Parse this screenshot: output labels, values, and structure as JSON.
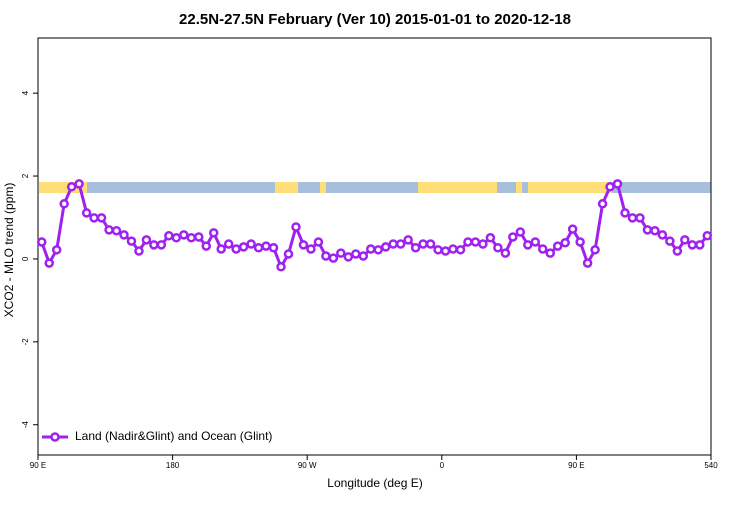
{
  "chart_data": {
    "type": "line",
    "title": "22.5N-27.5N February (Ver 10)   2015-01-01 to 2020-12-18",
    "x_label": "Longitude (deg E)",
    "y_label": "XCO2 - MLO trend (ppm)",
    "xlim": [
      90,
      540
    ],
    "ylim": [
      -4.73,
      5.33
    ],
    "xticks": [
      {
        "value": 90,
        "label": "90 E"
      },
      180,
      {
        "value": 270,
        "label": "90 W"
      },
      {
        "value": 360,
        "label": "0"
      },
      {
        "value": 450,
        "label": "90 E"
      },
      540
    ],
    "yticks": [
      -4,
      -2,
      0,
      2,
      4
    ],
    "legend": "bottom-left",
    "series": [
      {
        "name": "Land (Nadir&Glint) and Ocean (Glint)",
        "color": "#a020f0",
        "x": [
          92.5,
          97.5,
          102.5,
          107.5,
          112.5,
          117.5,
          122.5,
          127.5,
          132.5,
          137.5,
          142.5,
          147.5,
          152.5,
          157.5,
          162.5,
          167.5,
          172.5,
          177.5,
          182.5,
          187.5,
          192.5,
          197.5,
          202.5,
          207.5,
          212.5,
          217.5,
          222.5,
          227.5,
          232.5,
          237.5,
          242.5,
          247.5,
          252.5,
          257.5,
          262.5,
          267.5,
          272.5,
          277.5,
          282.5,
          287.5,
          292.5,
          297.5,
          302.5,
          307.5,
          312.5,
          317.5,
          322.5,
          327.5,
          332.5,
          337.5,
          342.5,
          347.5,
          352.5,
          357.5,
          362.5,
          367.5,
          372.5,
          377.5,
          382.5,
          387.5,
          392.5,
          397.5,
          402.5,
          407.5,
          412.5,
          417.5,
          422.5,
          427.5,
          432.5,
          437.5,
          442.5,
          447.5,
          452.5,
          457.5,
          462.5,
          467.5,
          472.5,
          477.5,
          482.5,
          487.5,
          492.5,
          497.5,
          502.5,
          507.5,
          512.5,
          517.5,
          522.5,
          527.5,
          532.5,
          537.5
        ],
        "values": [
          0.41,
          -0.1,
          0.22,
          1.33,
          1.74,
          1.81,
          1.11,
          0.99,
          0.99,
          0.7,
          0.68,
          0.58,
          0.43,
          0.19,
          0.46,
          0.34,
          0.34,
          0.56,
          0.51,
          0.58,
          0.51,
          0.53,
          0.31,
          0.63,
          0.24,
          0.36,
          0.24,
          0.29,
          0.36,
          0.27,
          0.31,
          0.27,
          -0.19,
          0.12,
          0.77,
          0.34,
          0.24,
          0.41,
          0.07,
          0.02,
          0.14,
          0.05,
          0.12,
          0.07,
          0.24,
          0.22,
          0.29,
          0.36,
          0.36,
          0.46,
          0.27,
          0.36,
          0.36,
          0.22,
          0.19,
          0.24,
          0.22,
          0.41,
          0.41,
          0.36,
          0.51,
          0.27,
          0.14,
          0.53,
          0.65,
          0.34,
          0.41,
          0.24,
          0.14,
          0.31,
          0.39,
          0.72,
          0.41,
          -0.1,
          0.22,
          1.33,
          1.74,
          1.81,
          1.11,
          0.99,
          0.99,
          0.7,
          0.68,
          0.58,
          0.43,
          0.19,
          0.46,
          0.34,
          0.34,
          0.56
        ]
      }
    ]
  }
}
